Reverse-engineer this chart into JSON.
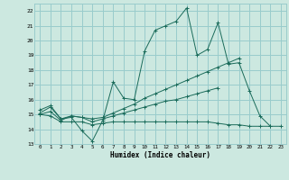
{
  "xlabel": "Humidex (Indice chaleur)",
  "background_color": "#cce8e0",
  "grid_color": "#99cccc",
  "line_color": "#1a6b5a",
  "xlim": [
    -0.5,
    23.5
  ],
  "ylim": [
    13,
    22.5
  ],
  "xticks": [
    0,
    1,
    2,
    3,
    4,
    5,
    6,
    7,
    8,
    9,
    10,
    11,
    12,
    13,
    14,
    15,
    16,
    17,
    18,
    19,
    20,
    21,
    22,
    23
  ],
  "yticks": [
    13,
    14,
    15,
    16,
    17,
    18,
    19,
    20,
    21,
    22
  ],
  "series": [
    [
      15.3,
      15.6,
      14.7,
      14.8,
      13.9,
      13.2,
      14.6,
      17.2,
      16.1,
      16.0,
      19.3,
      20.7,
      21.0,
      21.3,
      22.2,
      19.0,
      19.4,
      21.2,
      18.4,
      18.5,
      16.6,
      14.9,
      14.2,
      null
    ],
    [
      15.1,
      15.5,
      14.7,
      14.9,
      14.8,
      14.7,
      14.8,
      15.1,
      15.4,
      15.7,
      16.1,
      16.4,
      16.7,
      17.0,
      17.3,
      17.6,
      17.9,
      18.2,
      18.5,
      18.8,
      null,
      null,
      null,
      null
    ],
    [
      15.0,
      15.2,
      14.6,
      14.9,
      14.8,
      14.5,
      14.7,
      14.9,
      15.1,
      15.3,
      15.5,
      15.7,
      15.9,
      16.0,
      16.2,
      16.4,
      16.6,
      16.8,
      null,
      null,
      null,
      null,
      null,
      null
    ],
    [
      15.0,
      14.9,
      14.5,
      14.5,
      14.5,
      14.3,
      14.4,
      14.5,
      14.5,
      14.5,
      14.5,
      14.5,
      14.5,
      14.5,
      14.5,
      14.5,
      14.5,
      14.4,
      14.3,
      14.3,
      14.2,
      14.2,
      14.2,
      14.2
    ]
  ]
}
